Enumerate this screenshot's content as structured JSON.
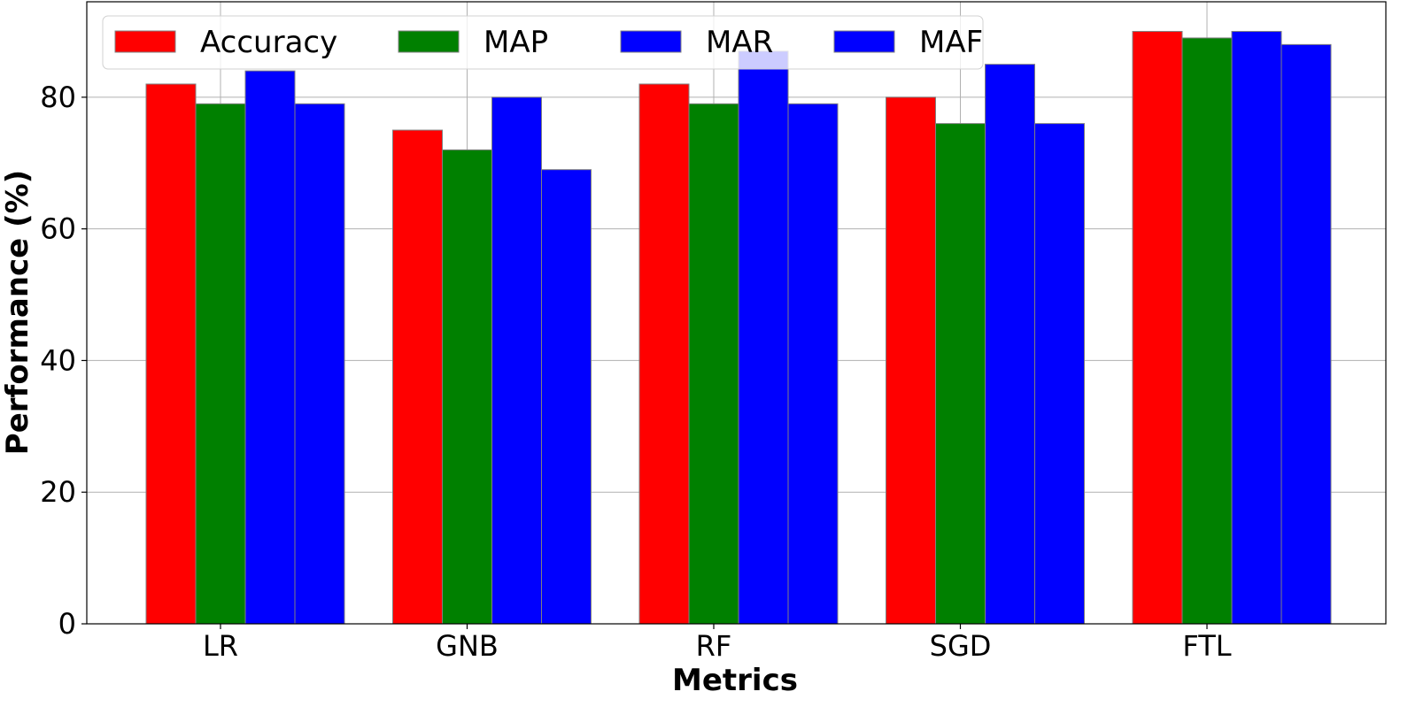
{
  "chart_data": {
    "type": "bar",
    "categories": [
      "LR",
      "GNB",
      "RF",
      "SGD",
      "FTL"
    ],
    "series": [
      {
        "name": "Accuracy",
        "color": "#ff0000",
        "values": [
          82,
          75,
          82,
          80,
          90
        ]
      },
      {
        "name": "MAP",
        "color": "#008000",
        "values": [
          79,
          72,
          79,
          76,
          89
        ]
      },
      {
        "name": "MAR",
        "color": "#0000ff",
        "values": [
          84,
          80,
          87,
          85,
          90
        ]
      },
      {
        "name": "MAF",
        "color": "#0000ff",
        "values": [
          79,
          69,
          79,
          76,
          88
        ]
      }
    ],
    "xlabel": "Metrics",
    "ylabel": "Performance (%)",
    "ylim": [
      0,
      94.5
    ],
    "yticks": [
      0,
      20,
      40,
      60,
      80
    ],
    "grid": true,
    "legend_position": "top-left",
    "bar_edge_color": "#808080"
  }
}
